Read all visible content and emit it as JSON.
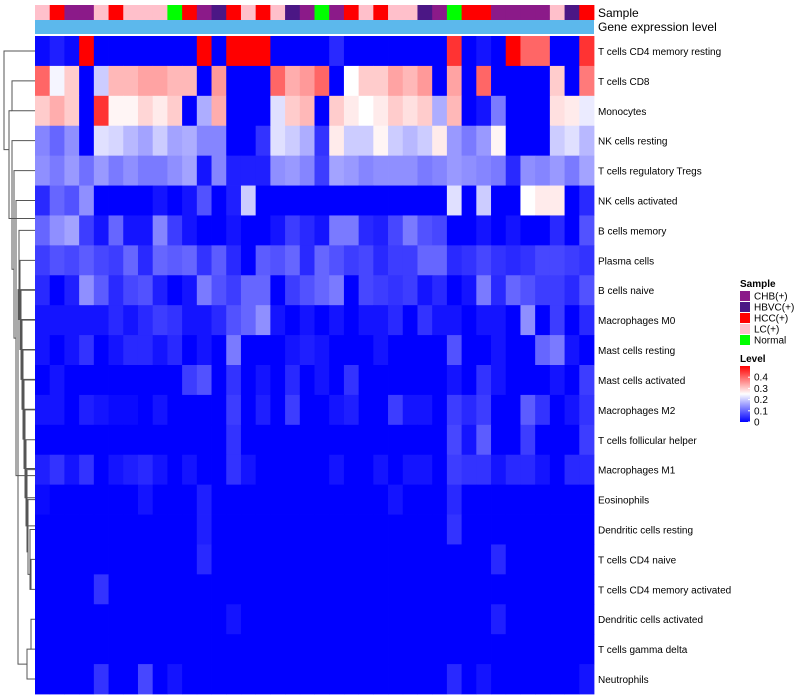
{
  "chart_data": {
    "type": "heatmap",
    "annotation_labels": {
      "sample_track": "Sample",
      "level_track": "Gene expression level"
    },
    "legends": {
      "sample": {
        "title": "Sample",
        "entries": [
          {
            "label": "CHB(+)",
            "color": "#8B1A89"
          },
          {
            "label": "HBVC(+)",
            "color": "#4B1785"
          },
          {
            "label": "HCC(+)",
            "color": "#FF0000"
          },
          {
            "label": "LC(+)",
            "color": "#FFC0CB"
          },
          {
            "label": "Normal",
            "color": "#00FF00"
          }
        ]
      },
      "level": {
        "title": "Level",
        "range": [
          0,
          0.4
        ],
        "tick_labels": [
          "0.4",
          "0.3",
          "0.2",
          "0.1",
          "0"
        ],
        "ticks": [
          0.4,
          0.3,
          0.2,
          0.1,
          0
        ],
        "colors": [
          "#0000FF",
          "#FFFFFF",
          "#FF0000"
        ],
        "midpoint": 0.25,
        "max_color_value": 0.5
      }
    },
    "level_bar_color": "#5CB8EC",
    "columns_sample": [
      "LC(+)",
      "HCC(+)",
      "CHB(+)",
      "CHB(+)",
      "LC(+)",
      "HCC(+)",
      "LC(+)",
      "LC(+)",
      "LC(+)",
      "Normal",
      "HCC(+)",
      "CHB(+)",
      "HBVC(+)",
      "HCC(+)",
      "LC(+)",
      "HCC(+)",
      "LC(+)",
      "HBVC(+)",
      "CHB(+)",
      "Normal",
      "CHB(+)",
      "HCC(+)",
      "LC(+)",
      "HCC(+)",
      "LC(+)",
      "LC(+)",
      "HBVC(+)",
      "CHB(+)",
      "Normal",
      "HCC(+)",
      "HCC(+)",
      "CHB(+)",
      "CHB(+)",
      "CHB(+)",
      "CHB(+)",
      "LC(+)",
      "HBVC(+)",
      "HCC(+)"
    ],
    "rows": [
      {
        "name": "T cells CD4 memory resting",
        "values": [
          0.01,
          0.03,
          0.01,
          0.5,
          0.0,
          0.0,
          0.0,
          0.0,
          0.0,
          0.0,
          0.0,
          0.5,
          0.0,
          0.5,
          0.5,
          0.5,
          0.0,
          0.0,
          0.0,
          0.0,
          0.04,
          0.0,
          0.0,
          0.0,
          0.0,
          0.0,
          0.0,
          0.0,
          0.45,
          0.0,
          0.02,
          0.0,
          0.5,
          0.4,
          0.4,
          0.0,
          0.0,
          0.45
        ]
      },
      {
        "name": "T cells CD8",
        "values": [
          0.4,
          0.24,
          0.3,
          0.0,
          0.2,
          0.32,
          0.32,
          0.34,
          0.34,
          0.32,
          0.32,
          0.0,
          0.35,
          0.0,
          0.0,
          0.0,
          0.4,
          0.33,
          0.35,
          0.4,
          0.0,
          0.25,
          0.3,
          0.3,
          0.34,
          0.32,
          0.35,
          0.0,
          0.34,
          0.0,
          0.4,
          0.0,
          0.0,
          0.0,
          0.0,
          0.3,
          0.0,
          0.38
        ]
      },
      {
        "name": "Monocytes",
        "values": [
          0.3,
          0.33,
          0.3,
          0.0,
          0.45,
          0.26,
          0.26,
          0.29,
          0.27,
          0.3,
          0.0,
          0.17,
          0.33,
          0.0,
          0.0,
          0.0,
          0.22,
          0.3,
          0.32,
          0.0,
          0.3,
          0.27,
          0.25,
          0.27,
          0.3,
          0.28,
          0.3,
          0.17,
          0.32,
          0.0,
          0.02,
          0.12,
          0.0,
          0.0,
          0.0,
          0.28,
          0.27,
          0.23
        ]
      },
      {
        "name": "NK cells resting",
        "values": [
          0.13,
          0.1,
          0.14,
          0.0,
          0.22,
          0.21,
          0.18,
          0.16,
          0.2,
          0.16,
          0.17,
          0.13,
          0.13,
          0.0,
          0.0,
          0.05,
          0.22,
          0.2,
          0.17,
          0.05,
          0.27,
          0.2,
          0.2,
          0.26,
          0.2,
          0.18,
          0.2,
          0.27,
          0.15,
          0.12,
          0.15,
          0.26,
          0.0,
          0.0,
          0.0,
          0.2,
          0.22,
          0.18
        ]
      },
      {
        "name": "T cells regulatory  Tregs",
        "values": [
          0.14,
          0.12,
          0.15,
          0.11,
          0.15,
          0.12,
          0.14,
          0.12,
          0.12,
          0.14,
          0.16,
          0.02,
          0.13,
          0.03,
          0.03,
          0.03,
          0.14,
          0.15,
          0.13,
          0.06,
          0.16,
          0.15,
          0.13,
          0.14,
          0.14,
          0.14,
          0.12,
          0.13,
          0.15,
          0.14,
          0.13,
          0.12,
          0.04,
          0.14,
          0.13,
          0.15,
          0.12,
          0.16
        ]
      },
      {
        "name": "NK cells activated",
        "values": [
          0.04,
          0.1,
          0.08,
          0.14,
          0.0,
          0.0,
          0.0,
          0.0,
          0.02,
          0.0,
          0.02,
          0.08,
          0.0,
          0.03,
          0.2,
          0.0,
          0.0,
          0.0,
          0.0,
          0.0,
          0.0,
          0.0,
          0.0,
          0.0,
          0.0,
          0.0,
          0.0,
          0.0,
          0.22,
          0.0,
          0.2,
          0.0,
          0.0,
          0.25,
          0.27,
          0.27,
          0.0,
          0.04
        ]
      },
      {
        "name": "B cells memory",
        "values": [
          0.1,
          0.14,
          0.16,
          0.06,
          0.02,
          0.1,
          0.02,
          0.02,
          0.13,
          0.06,
          0.02,
          0.0,
          0.0,
          0.02,
          0.0,
          0.0,
          0.02,
          0.06,
          0.04,
          0.02,
          0.12,
          0.12,
          0.04,
          0.03,
          0.07,
          0.12,
          0.08,
          0.07,
          0.0,
          0.0,
          0.02,
          0.0,
          0.02,
          0.0,
          0.0,
          0.04,
          0.0,
          0.08
        ]
      },
      {
        "name": "Plasma cells",
        "values": [
          0.06,
          0.08,
          0.07,
          0.09,
          0.07,
          0.06,
          0.1,
          0.04,
          0.1,
          0.09,
          0.1,
          0.05,
          0.09,
          0.04,
          0.0,
          0.09,
          0.08,
          0.1,
          0.04,
          0.1,
          0.08,
          0.06,
          0.07,
          0.04,
          0.06,
          0.06,
          0.1,
          0.1,
          0.04,
          0.05,
          0.07,
          0.05,
          0.04,
          0.05,
          0.07,
          0.07,
          0.06,
          0.05
        ]
      },
      {
        "name": "B cells naive",
        "values": [
          0.04,
          0.0,
          0.03,
          0.14,
          0.09,
          0.04,
          0.07,
          0.08,
          0.03,
          0.0,
          0.02,
          0.12,
          0.08,
          0.06,
          0.1,
          0.1,
          0.0,
          0.06,
          0.08,
          0.1,
          0.12,
          0.0,
          0.07,
          0.06,
          0.05,
          0.06,
          0.02,
          0.04,
          0.0,
          0.02,
          0.12,
          0.04,
          0.1,
          0.08,
          0.06,
          0.06,
          0.04,
          0.08
        ]
      },
      {
        "name": "Macrophages M0",
        "values": [
          0.02,
          0.02,
          0.02,
          0.02,
          0.02,
          0.04,
          0.02,
          0.04,
          0.06,
          0.05,
          0.02,
          0.02,
          0.04,
          0.08,
          0.1,
          0.14,
          0.02,
          0.0,
          0.02,
          0.0,
          0.02,
          0.0,
          0.02,
          0.02,
          0.04,
          0.0,
          0.05,
          0.02,
          0.02,
          0.0,
          0.02,
          0.02,
          0.0,
          0.14,
          0.0,
          0.06,
          0.0,
          0.04
        ]
      },
      {
        "name": "Mast cells resting",
        "values": [
          0.02,
          0.0,
          0.02,
          0.05,
          0.0,
          0.02,
          0.04,
          0.04,
          0.02,
          0.04,
          0.0,
          0.02,
          0.0,
          0.12,
          0.0,
          0.0,
          0.0,
          0.02,
          0.03,
          0.02,
          0.0,
          0.0,
          0.0,
          0.02,
          0.0,
          0.0,
          0.0,
          0.0,
          0.08,
          0.0,
          0.0,
          0.02,
          0.0,
          0.0,
          0.1,
          0.12,
          0.02,
          0.0
        ]
      },
      {
        "name": "Mast cells activated",
        "values": [
          0.0,
          0.02,
          0.0,
          0.0,
          0.0,
          0.0,
          0.0,
          0.0,
          0.0,
          0.0,
          0.06,
          0.08,
          0.0,
          0.05,
          0.0,
          0.02,
          0.0,
          0.04,
          0.0,
          0.02,
          0.0,
          0.05,
          0.0,
          0.0,
          0.0,
          0.0,
          0.0,
          0.0,
          0.02,
          0.0,
          0.05,
          0.02,
          0.0,
          0.0,
          0.0,
          0.02,
          0.0,
          0.06
        ]
      },
      {
        "name": "Macrophages M2",
        "values": [
          0.02,
          0.02,
          0.0,
          0.03,
          0.02,
          0.01,
          0.01,
          0.0,
          0.02,
          0.0,
          0.0,
          0.0,
          0.0,
          0.06,
          0.0,
          0.03,
          0.0,
          0.06,
          0.0,
          0.0,
          0.02,
          0.03,
          0.0,
          0.0,
          0.06,
          0.02,
          0.02,
          0.0,
          0.06,
          0.04,
          0.06,
          0.0,
          0.0,
          0.09,
          0.05,
          0.0,
          0.02,
          0.05
        ]
      },
      {
        "name": "T cells follicular helper",
        "values": [
          0.0,
          0.0,
          0.0,
          0.0,
          0.0,
          0.0,
          0.0,
          0.0,
          0.0,
          0.0,
          0.0,
          0.0,
          0.0,
          0.05,
          0.0,
          0.0,
          0.0,
          0.0,
          0.0,
          0.0,
          0.0,
          0.0,
          0.0,
          0.0,
          0.0,
          0.0,
          0.0,
          0.0,
          0.07,
          0.02,
          0.09,
          0.0,
          0.0,
          0.06,
          0.0,
          0.0,
          0.0,
          0.06
        ]
      },
      {
        "name": "Macrophages M1",
        "values": [
          0.03,
          0.05,
          0.02,
          0.05,
          0.0,
          0.02,
          0.03,
          0.04,
          0.02,
          0.0,
          0.02,
          0.0,
          0.0,
          0.05,
          0.02,
          0.0,
          0.0,
          0.0,
          0.0,
          0.0,
          0.02,
          0.0,
          0.0,
          0.02,
          0.0,
          0.02,
          0.02,
          0.0,
          0.06,
          0.05,
          0.05,
          0.02,
          0.04,
          0.04,
          0.02,
          0.0,
          0.04,
          0.04
        ]
      },
      {
        "name": "Eosinophils",
        "values": [
          0.01,
          0.0,
          0.0,
          0.0,
          0.0,
          0.0,
          0.0,
          0.02,
          0.0,
          0.0,
          0.0,
          0.03,
          0.0,
          0.0,
          0.0,
          0.0,
          0.0,
          0.0,
          0.0,
          0.0,
          0.0,
          0.0,
          0.0,
          0.0,
          0.02,
          0.0,
          0.0,
          0.0,
          0.04,
          0.0,
          0.0,
          0.0,
          0.0,
          0.0,
          0.0,
          0.0,
          0.0,
          0.0
        ]
      },
      {
        "name": "Dendritic cells resting",
        "values": [
          0.0,
          0.0,
          0.0,
          0.0,
          0.0,
          0.0,
          0.0,
          0.0,
          0.0,
          0.0,
          0.0,
          0.03,
          0.0,
          0.0,
          0.0,
          0.0,
          0.0,
          0.0,
          0.0,
          0.0,
          0.0,
          0.0,
          0.0,
          0.0,
          0.0,
          0.0,
          0.0,
          0.0,
          0.05,
          0.0,
          0.0,
          0.0,
          0.0,
          0.0,
          0.0,
          0.0,
          0.0,
          0.0
        ]
      },
      {
        "name": "T cells CD4 naive",
        "values": [
          0.0,
          0.0,
          0.0,
          0.0,
          0.0,
          0.0,
          0.0,
          0.0,
          0.0,
          0.0,
          0.0,
          0.04,
          0.0,
          0.0,
          0.0,
          0.0,
          0.0,
          0.0,
          0.0,
          0.0,
          0.0,
          0.0,
          0.0,
          0.0,
          0.0,
          0.0,
          0.0,
          0.0,
          0.0,
          0.0,
          0.0,
          0.04,
          0.0,
          0.0,
          0.0,
          0.0,
          0.0,
          0.0
        ]
      },
      {
        "name": "T cells CD4 memory activated",
        "values": [
          0.0,
          0.0,
          0.0,
          0.0,
          0.05,
          0.0,
          0.0,
          0.0,
          0.0,
          0.0,
          0.0,
          0.0,
          0.0,
          0.0,
          0.0,
          0.0,
          0.0,
          0.0,
          0.0,
          0.0,
          0.0,
          0.0,
          0.0,
          0.0,
          0.0,
          0.0,
          0.0,
          0.0,
          0.0,
          0.0,
          0.0,
          0.0,
          0.0,
          0.0,
          0.0,
          0.0,
          0.0,
          0.0
        ]
      },
      {
        "name": "Dendritic cells activated",
        "values": [
          0.0,
          0.0,
          0.0,
          0.0,
          0.0,
          0.0,
          0.0,
          0.0,
          0.0,
          0.0,
          0.0,
          0.0,
          0.0,
          0.02,
          0.0,
          0.0,
          0.0,
          0.0,
          0.0,
          0.0,
          0.0,
          0.0,
          0.0,
          0.0,
          0.0,
          0.0,
          0.0,
          0.0,
          0.0,
          0.0,
          0.0,
          0.03,
          0.0,
          0.0,
          0.0,
          0.0,
          0.0,
          0.0
        ]
      },
      {
        "name": "T cells gamma delta",
        "values": [
          0.0,
          0.0,
          0.0,
          0.0,
          0.0,
          0.0,
          0.0,
          0.0,
          0.0,
          0.0,
          0.0,
          0.0,
          0.0,
          0.0,
          0.0,
          0.0,
          0.0,
          0.0,
          0.0,
          0.0,
          0.0,
          0.0,
          0.0,
          0.0,
          0.0,
          0.0,
          0.0,
          0.0,
          0.0,
          0.0,
          0.0,
          0.0,
          0.0,
          0.0,
          0.0,
          0.0,
          0.0,
          0.0
        ]
      },
      {
        "name": "Neutrophils",
        "values": [
          0.0,
          0.0,
          0.0,
          0.0,
          0.05,
          0.0,
          0.0,
          0.07,
          0.0,
          0.02,
          0.0,
          0.0,
          0.0,
          0.0,
          0.0,
          0.0,
          0.0,
          0.0,
          0.0,
          0.0,
          0.0,
          0.0,
          0.0,
          0.0,
          0.0,
          0.0,
          0.0,
          0.0,
          0.04,
          0.0,
          0.02,
          0.0,
          0.0,
          0.0,
          0.0,
          0.0,
          0.0,
          0.02
        ]
      }
    ]
  }
}
